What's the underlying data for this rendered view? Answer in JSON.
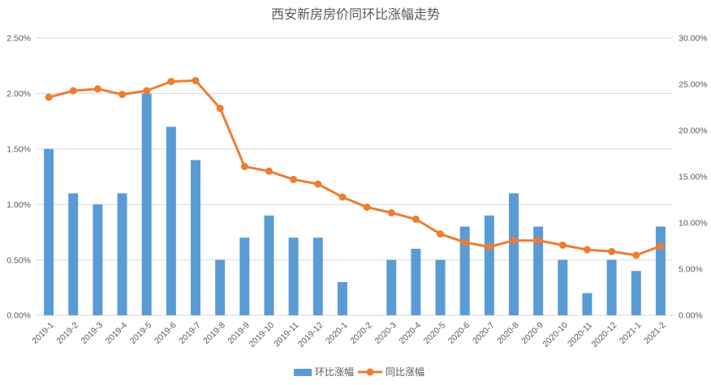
{
  "chart_data": {
    "type": "bar",
    "title": "西安新房房价同环比涨幅走势",
    "categories": [
      "2019-1",
      "2019-2",
      "2019-3",
      "2019-4",
      "2019-5",
      "2019-6",
      "2019-7",
      "2019-8",
      "2019-9",
      "2019-10",
      "2019-11",
      "2019-12",
      "2020-1",
      "2020-2",
      "2020-3",
      "2020-4",
      "2020-5",
      "2020-6",
      "2020-7",
      "2020-8",
      "2020-9",
      "2020-10",
      "2020-11",
      "2020-12",
      "2021-1",
      "2021-2"
    ],
    "series": [
      {
        "name": "环比涨幅",
        "type": "bar",
        "axis": "left",
        "color": "#5b9bd5",
        "values": [
          1.5,
          1.1,
          1.0,
          1.1,
          2.0,
          1.7,
          1.4,
          0.5,
          0.7,
          0.9,
          0.7,
          0.7,
          0.3,
          0,
          0.5,
          0.6,
          0.5,
          0.8,
          0.9,
          1.1,
          0.8,
          0.5,
          0.2,
          0.5,
          0.4,
          0.8
        ]
      },
      {
        "name": "同比涨幅",
        "type": "line",
        "axis": "right",
        "color": "#ed7d31",
        "values": [
          23.6,
          24.3,
          24.5,
          23.9,
          24.3,
          25.3,
          25.4,
          22.4,
          16.1,
          15.6,
          14.7,
          14.2,
          12.8,
          11.7,
          11.1,
          10.4,
          8.8,
          7.9,
          7.4,
          8.1,
          8.1,
          7.6,
          7.1,
          6.9,
          6.5,
          7.5
        ]
      }
    ],
    "y_left": {
      "range": [
        0,
        2.5
      ],
      "ticks": [
        "0.00%",
        "0.50%",
        "1.00%",
        "1.50%",
        "2.00%",
        "2.50%"
      ]
    },
    "y_right": {
      "range": [
        0,
        30
      ],
      "ticks": [
        "0.00%",
        "5.00%",
        "10.00%",
        "15.00%",
        "20.00%",
        "25.00%",
        "30.00%"
      ]
    },
    "grid": true,
    "legend_position": "bottom"
  }
}
